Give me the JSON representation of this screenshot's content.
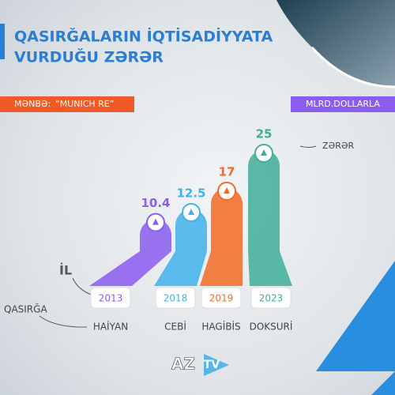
{
  "chart_data": {
    "type": "bar",
    "title": [
      "QASIRĞALARIN İQTİSADİYYATA",
      "VURDUĞU ZƏRƏR"
    ],
    "source_label": "MƏNBƏ:",
    "source": "“MUNICH RE”",
    "unit": "MLRD.DOLLARLA",
    "annotation": "ZƏRƏR",
    "year_label": "İL",
    "name_label": "QASIRĞA",
    "categories": [
      "2013",
      "2018",
      "2019",
      "2023"
    ],
    "names": [
      "HAİYAN",
      "CEBİ",
      "HAGİBİS",
      "DOKSURİ"
    ],
    "values": [
      10.4,
      12.5,
      17,
      25
    ],
    "colors": [
      "#8b5cf0",
      "#3fb2ea",
      "#f26a24",
      "#3fae98"
    ],
    "logo": [
      "AZ",
      "TV"
    ]
  }
}
